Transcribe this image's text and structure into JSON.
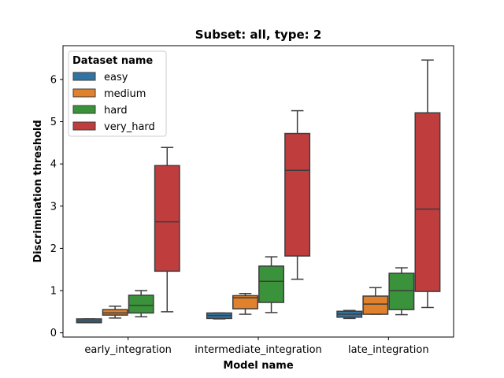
{
  "chart_data": {
    "type": "box",
    "title": "Subset: all, type: 2",
    "xlabel": "Model name",
    "ylabel": "Discrimination threshold",
    "ylim": [
      -0.1,
      6.8
    ],
    "yticks": [
      0,
      1,
      2,
      3,
      4,
      5,
      6
    ],
    "categories": [
      "early_integration",
      "intermediate_integration",
      "late_integration"
    ],
    "legend": {
      "title": "Dataset name",
      "placement": "top-left"
    },
    "grid": false,
    "series": [
      {
        "name": "easy",
        "color": "#3274a1",
        "boxes": [
          {
            "whislo": 0.24,
            "q1": 0.24,
            "med": 0.28,
            "q3": 0.33,
            "whishi": 0.33
          },
          {
            "whislo": 0.33,
            "q1": 0.34,
            "med": 0.41,
            "q3": 0.47,
            "whishi": 0.47
          },
          {
            "whislo": 0.34,
            "q1": 0.37,
            "med": 0.44,
            "q3": 0.51,
            "whishi": 0.53
          }
        ]
      },
      {
        "name": "medium",
        "color": "#e1812c",
        "boxes": [
          {
            "whislo": 0.35,
            "q1": 0.42,
            "med": 0.47,
            "q3": 0.55,
            "whishi": 0.63
          },
          {
            "whislo": 0.44,
            "q1": 0.57,
            "med": 0.83,
            "q3": 0.88,
            "whishi": 0.93
          },
          {
            "whislo": 0.44,
            "q1": 0.44,
            "med": 0.68,
            "q3": 0.87,
            "whishi": 1.07
          }
        ]
      },
      {
        "name": "hard",
        "color": "#3a923a",
        "boxes": [
          {
            "whislo": 0.38,
            "q1": 0.47,
            "med": 0.65,
            "q3": 0.89,
            "whishi": 1.0
          },
          {
            "whislo": 0.48,
            "q1": 0.72,
            "med": 1.22,
            "q3": 1.58,
            "whishi": 1.8
          },
          {
            "whislo": 0.43,
            "q1": 0.55,
            "med": 1.0,
            "q3": 1.41,
            "whishi": 1.54
          }
        ]
      },
      {
        "name": "very_hard",
        "color": "#c03d3e",
        "boxes": [
          {
            "whislo": 0.5,
            "q1": 1.46,
            "med": 2.63,
            "q3": 3.96,
            "whishi": 4.39
          },
          {
            "whislo": 1.27,
            "q1": 1.82,
            "med": 3.85,
            "q3": 4.72,
            "whishi": 5.26
          },
          {
            "whislo": 0.6,
            "q1": 0.98,
            "med": 2.93,
            "q3": 5.21,
            "whishi": 6.46
          }
        ]
      }
    ]
  }
}
